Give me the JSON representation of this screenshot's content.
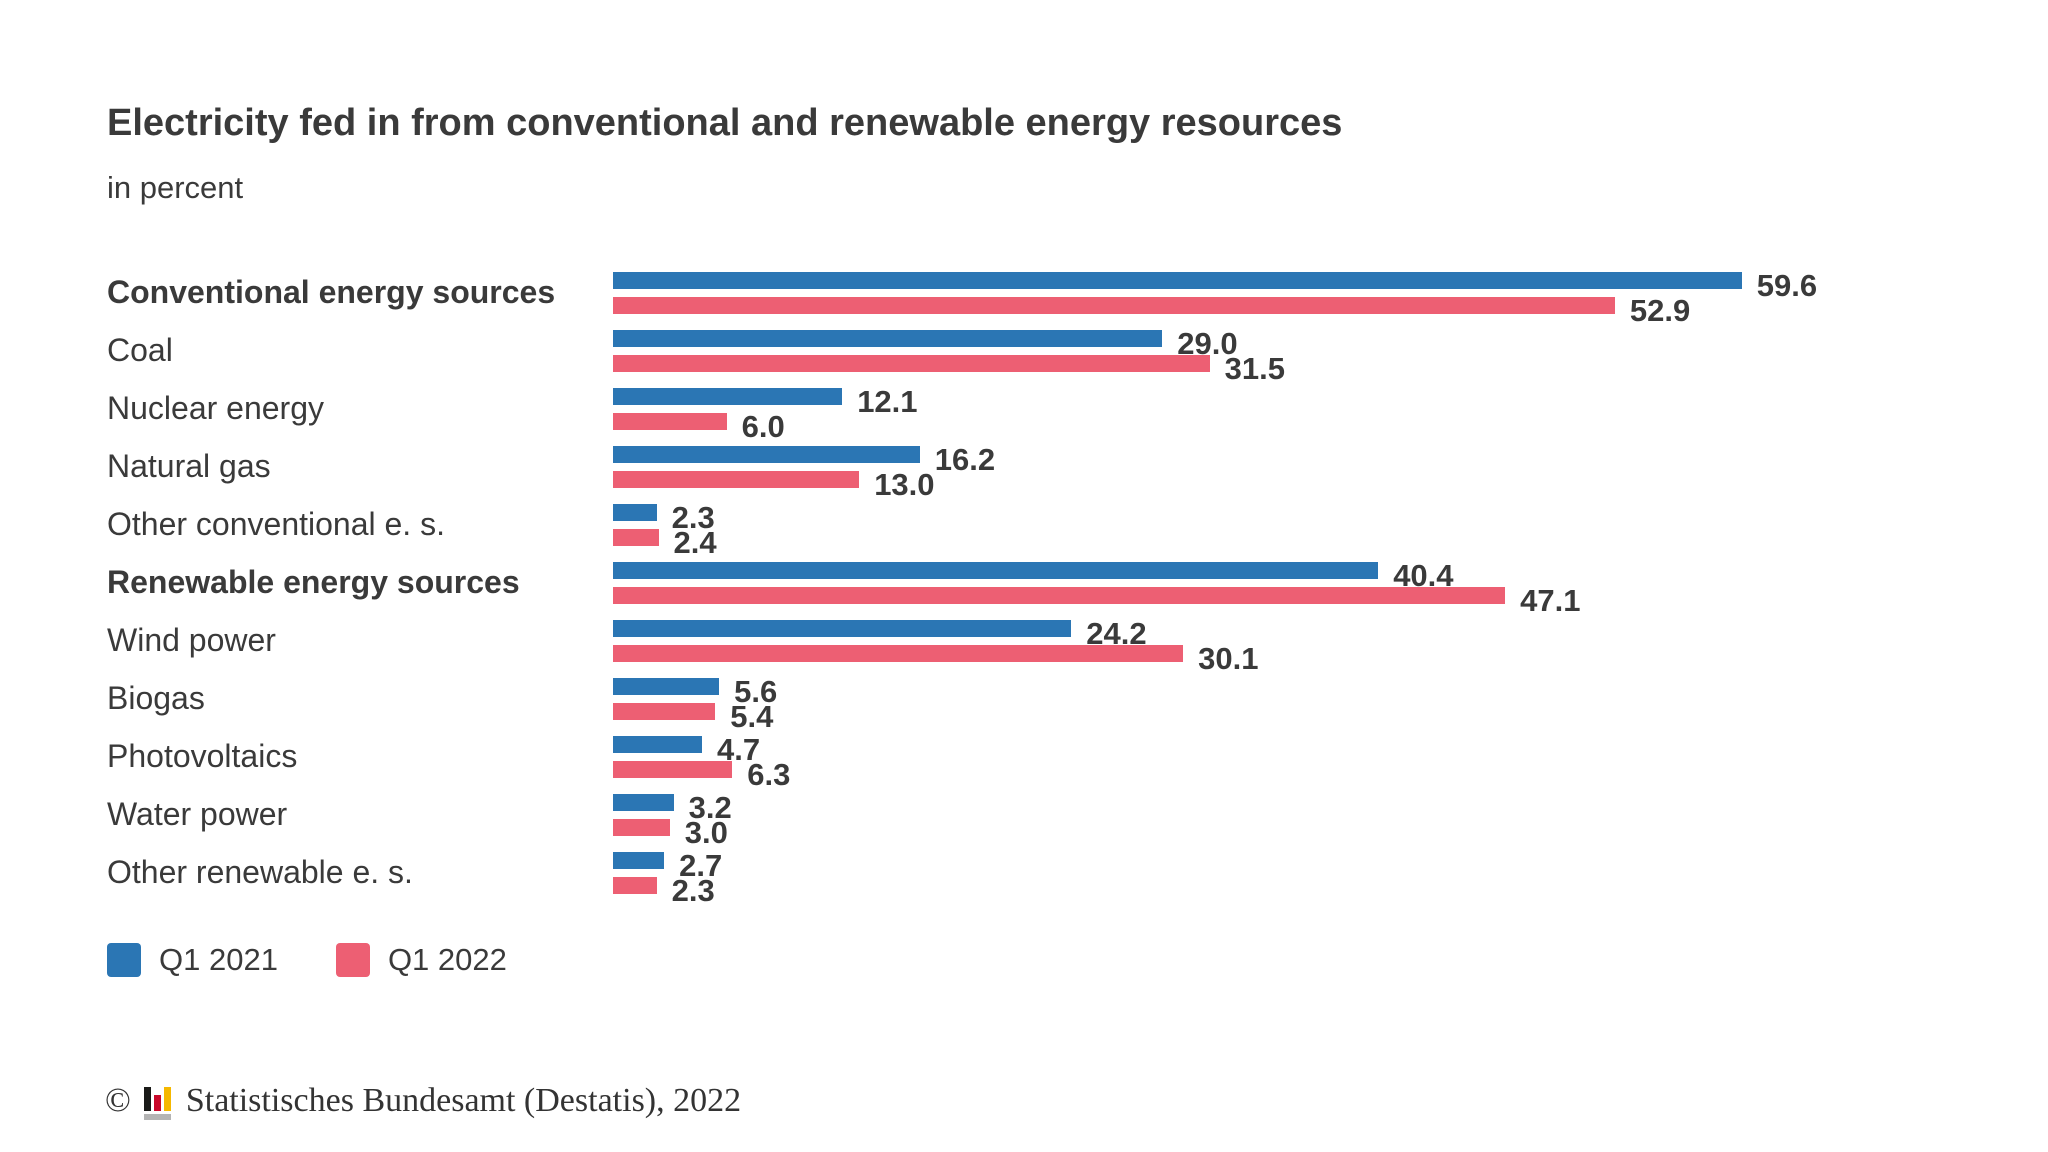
{
  "title": "Electricity fed in from conventional and renewable energy resources",
  "subtitle": "in percent",
  "legend": {
    "items": [
      {
        "label": "Q1 2021",
        "color": "#2b76b4"
      },
      {
        "label": "Q1 2022",
        "color": "#ed5f73"
      }
    ]
  },
  "footer": {
    "copyright_symbol": "©",
    "source_text": "Statistisches Bundesamt (Destatis), 2022"
  },
  "colors": {
    "series1_blue": "#2b76b4",
    "series2_pink": "#ed5f73",
    "text": "#3a3a3a",
    "logo_black": "#1a1a18",
    "logo_red": "#c9082a",
    "logo_yellow": "#f5b800",
    "logo_gray": "#b4b4b4"
  },
  "chart_data": {
    "type": "bar",
    "orientation": "horizontal",
    "title": "Electricity fed in from conventional and renewable energy resources",
    "subtitle": "in percent",
    "xlabel": "",
    "ylabel": "",
    "xlim": [
      0,
      62
    ],
    "grid": false,
    "legend_position": "bottom",
    "value_labels": true,
    "value_decimals": 1,
    "categories": [
      {
        "label": "Conventional energy sources",
        "bold": true
      },
      {
        "label": "Coal",
        "bold": false
      },
      {
        "label": "Nuclear energy",
        "bold": false
      },
      {
        "label": "Natural gas",
        "bold": false
      },
      {
        "label": "Other conventional e. s.",
        "bold": false
      },
      {
        "label": "Renewable energy sources",
        "bold": true
      },
      {
        "label": "Wind power",
        "bold": false
      },
      {
        "label": "Biogas",
        "bold": false
      },
      {
        "label": "Photovoltaics",
        "bold": false
      },
      {
        "label": "Water power",
        "bold": false
      },
      {
        "label": "Other renewable e. s.",
        "bold": false
      }
    ],
    "series": [
      {
        "name": "Q1 2021",
        "values": [
          59.6,
          29.0,
          12.1,
          16.2,
          2.3,
          40.4,
          24.2,
          5.6,
          4.7,
          3.2,
          2.7
        ]
      },
      {
        "name": "Q1 2022",
        "values": [
          52.9,
          31.5,
          6.0,
          13.0,
          2.4,
          47.1,
          30.1,
          5.4,
          6.3,
          3.0,
          2.3
        ]
      }
    ]
  }
}
